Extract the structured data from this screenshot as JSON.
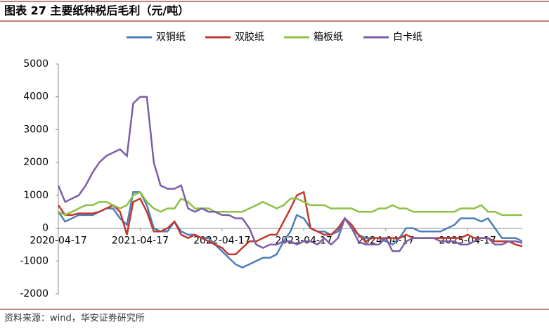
{
  "chart_data": {
    "type": "line",
    "title": "图表 27 主要纸种税后毛利（元/吨）",
    "source": "资料来源：wind，华安证券研究所",
    "x": [
      "2020-04-17",
      "2020-05-17",
      "2020-06-17",
      "2020-07-17",
      "2020-08-17",
      "2020-09-17",
      "2020-10-17",
      "2020-11-17",
      "2020-12-17",
      "2021-01-17",
      "2021-02-17",
      "2021-03-17",
      "2021-04-17",
      "2021-05-17",
      "2021-06-17",
      "2021-07-17",
      "2021-08-17",
      "2021-09-17",
      "2021-10-17",
      "2021-11-17",
      "2021-12-17",
      "2022-01-17",
      "2022-02-17",
      "2022-03-17",
      "2022-04-17",
      "2022-05-17",
      "2022-06-17",
      "2022-07-17",
      "2022-08-17",
      "2022-09-17",
      "2022-10-17",
      "2022-11-17",
      "2022-12-17",
      "2023-01-17",
      "2023-02-17",
      "2023-03-17",
      "2023-04-17",
      "2023-05-17",
      "2023-06-17",
      "2023-07-17",
      "2023-08-17",
      "2023-09-17",
      "2023-10-17",
      "2023-11-17",
      "2023-12-17",
      "2024-01-17",
      "2024-02-17",
      "2024-03-17",
      "2024-04-17",
      "2024-05-17",
      "2024-06-17",
      "2024-07-17",
      "2024-08-17",
      "2024-09-17",
      "2024-10-17",
      "2024-11-17",
      "2024-12-17",
      "2025-01-17",
      "2025-02-17",
      "2025-03-17",
      "2025-04-17",
      "2025-05-17",
      "2025-06-17",
      "2025-07-17",
      "2025-08-17",
      "2025-09-17",
      "2025-10-17",
      "2025-11-17",
      "2025-12-17"
    ],
    "series": [
      {
        "name": "双铜纸",
        "color": "#4a7ebb",
        "values": [
          500,
          200,
          300,
          400,
          400,
          400,
          500,
          600,
          600,
          300,
          100,
          1100,
          1100,
          700,
          0,
          -100,
          -100,
          200,
          -100,
          -200,
          -200,
          -300,
          -300,
          -500,
          -700,
          -900,
          -1100,
          -1200,
          -1100,
          -1000,
          -900,
          -900,
          -800,
          -400,
          -100,
          400,
          300,
          0,
          -100,
          -100,
          -200,
          -100,
          300,
          0,
          -200,
          -300,
          -300,
          -300,
          -400,
          -500,
          -300,
          0,
          0,
          -100,
          -100,
          -100,
          -100,
          0,
          100,
          300,
          300,
          300,
          200,
          300,
          0,
          -300,
          -300,
          -300,
          -400
        ]
      },
      {
        "name": "双胶纸",
        "color": "#c0392b",
        "values": [
          700,
          400,
          400,
          450,
          450,
          450,
          500,
          600,
          700,
          500,
          -200,
          800,
          900,
          500,
          -100,
          -100,
          0,
          200,
          -200,
          -300,
          -200,
          -300,
          -400,
          -500,
          -600,
          -800,
          -800,
          -600,
          -400,
          -400,
          -300,
          -200,
          -200,
          200,
          600,
          1000,
          1100,
          0,
          -100,
          -200,
          -200,
          0,
          300,
          100,
          -200,
          -400,
          -300,
          -300,
          -300,
          -300,
          -300,
          -200,
          -300,
          -300,
          -300,
          -300,
          -300,
          -300,
          -300,
          -300,
          -200,
          -300,
          -300,
          -300,
          -400,
          -400,
          -400,
          -500,
          -550
        ]
      },
      {
        "name": "箱板纸",
        "color": "#8dc044",
        "values": [
          500,
          400,
          500,
          600,
          700,
          700,
          800,
          800,
          700,
          600,
          700,
          1000,
          1100,
          800,
          600,
          500,
          600,
          600,
          900,
          800,
          600,
          600,
          600,
          500,
          500,
          500,
          500,
          500,
          600,
          700,
          800,
          700,
          600,
          700,
          900,
          900,
          800,
          700,
          700,
          700,
          600,
          600,
          600,
          600,
          500,
          500,
          500,
          600,
          600,
          700,
          600,
          600,
          500,
          500,
          500,
          500,
          500,
          500,
          500,
          600,
          600,
          600,
          700,
          500,
          500,
          400,
          400,
          400,
          400
        ]
      },
      {
        "name": "白卡纸",
        "color": "#7b5ea7",
        "values": [
          1300,
          800,
          900,
          1000,
          1300,
          1700,
          2000,
          2200,
          2300,
          2400,
          2200,
          3800,
          4000,
          4000,
          2000,
          1300,
          1200,
          1200,
          1300,
          600,
          500,
          600,
          500,
          500,
          400,
          400,
          300,
          300,
          0,
          -500,
          -600,
          -500,
          -500,
          -400,
          -400,
          -500,
          -400,
          -400,
          -500,
          -300,
          -500,
          -300,
          300,
          0,
          -400,
          -500,
          -500,
          -500,
          -300,
          -700,
          -700,
          -400,
          -300,
          -300,
          -300,
          -300,
          -400,
          -400,
          -400,
          -500,
          -500,
          -400,
          -300,
          -300,
          -500,
          -500,
          -400,
          -400,
          -450
        ]
      }
    ],
    "xlim": [
      "2020-04-17",
      "2025-12-17"
    ],
    "xticks": [
      "2020-04-17",
      "2021-04-17",
      "2022-04-17",
      "2023-04-17",
      "2024-04-17",
      "2025-04-17"
    ],
    "ylim": [
      -2000,
      5000
    ],
    "yticks": [
      -2000,
      -1000,
      0,
      1000,
      2000,
      3000,
      4000,
      5000
    ],
    "grid": false,
    "legend": "top"
  }
}
